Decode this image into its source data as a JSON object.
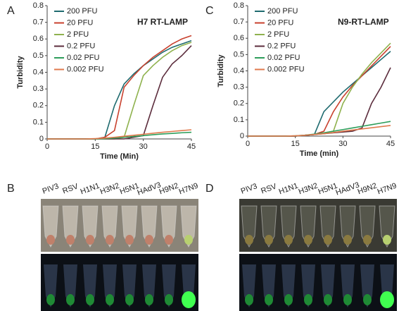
{
  "chart_data": [
    {
      "type": "line",
      "title": "H7 RT-LAMP",
      "xlabel": "Time (Min)",
      "ylabel": "Turbidity",
      "legend": "upper left",
      "xlim": [
        0,
        45
      ],
      "xticks": [
        0,
        15,
        30,
        45
      ],
      "ylim": [
        0,
        0.8
      ],
      "yticks": [
        0,
        0.1,
        0.2,
        0.3,
        0.4,
        0.5,
        0.6,
        0.7,
        0.8
      ],
      "x": [
        0,
        3,
        6,
        9,
        12,
        15,
        18,
        21,
        24,
        27,
        30,
        33,
        36,
        39,
        42,
        45
      ],
      "series": [
        {
          "name": "200 PFU",
          "color": "#1f6b6f",
          "values": [
            0,
            0,
            0,
            0,
            0,
            0,
            0.01,
            0.2,
            0.33,
            0.39,
            0.44,
            0.48,
            0.52,
            0.55,
            0.57,
            0.59
          ]
        },
        {
          "name": "20 PFU",
          "color": "#c8412e",
          "values": [
            0,
            0,
            0,
            0,
            0,
            0,
            0.01,
            0.05,
            0.31,
            0.38,
            0.44,
            0.49,
            0.53,
            0.57,
            0.6,
            0.62
          ]
        },
        {
          "name": "2 PFU",
          "color": "#8fb24e",
          "values": [
            0,
            0,
            0,
            0,
            0,
            0,
            0,
            0,
            0.01,
            0.2,
            0.38,
            0.44,
            0.49,
            0.53,
            0.56,
            0.58
          ]
        },
        {
          "name": "0.2 PFU",
          "color": "#5c2d3d",
          "values": [
            0,
            0,
            0,
            0,
            0,
            0,
            0,
            0,
            0,
            0.01,
            0.02,
            0.2,
            0.37,
            0.45,
            0.5,
            0.56
          ]
        },
        {
          "name": "0.02 PFU",
          "color": "#2e9e5b",
          "values": [
            0,
            0,
            0,
            0,
            0,
            0,
            0.002,
            0.005,
            0.01,
            0.015,
            0.02,
            0.025,
            0.03,
            0.033,
            0.037,
            0.04
          ]
        },
        {
          "name": "0.002 PFU",
          "color": "#e07a4e",
          "values": [
            0,
            0,
            0,
            0,
            0,
            0.002,
            0.005,
            0.01,
            0.016,
            0.022,
            0.028,
            0.034,
            0.04,
            0.045,
            0.05,
            0.055
          ]
        }
      ]
    },
    {
      "type": "line",
      "title": "N9-RT-LAMP",
      "xlabel": "Time (min)",
      "ylabel": "Turbidity",
      "legend": "upper left",
      "xlim": [
        0,
        45
      ],
      "xticks": [
        0,
        15,
        30,
        45
      ],
      "ylim": [
        0,
        0.8
      ],
      "yticks": [
        0,
        0.1,
        0.2,
        0.3,
        0.4,
        0.5,
        0.6,
        0.7,
        0.8
      ],
      "x": [
        0,
        3,
        6,
        9,
        12,
        15,
        18,
        21,
        24,
        27,
        30,
        33,
        36,
        39,
        42,
        45
      ],
      "series": [
        {
          "name": "200 PFU",
          "color": "#1f6b6f",
          "values": [
            0,
            0,
            0,
            0,
            0,
            0,
            0.005,
            0.01,
            0.15,
            0.21,
            0.27,
            0.32,
            0.37,
            0.42,
            0.47,
            0.52
          ]
        },
        {
          "name": "20 PFU",
          "color": "#c8412e",
          "values": [
            0,
            0,
            0,
            0,
            0,
            0,
            0.005,
            0.01,
            0.03,
            0.15,
            0.24,
            0.31,
            0.37,
            0.43,
            0.49,
            0.55
          ]
        },
        {
          "name": "2 PFU",
          "color": "#8fb24e",
          "values": [
            0,
            0,
            0,
            0,
            0,
            0,
            0.005,
            0.01,
            0.02,
            0.03,
            0.2,
            0.3,
            0.38,
            0.45,
            0.51,
            0.57
          ]
        },
        {
          "name": "0.2 PFU",
          "color": "#5c2d3d",
          "values": [
            0,
            0,
            0,
            0,
            0,
            0,
            0.005,
            0.01,
            0.015,
            0.02,
            0.025,
            0.03,
            0.05,
            0.2,
            0.3,
            0.42
          ]
        },
        {
          "name": "0.02 PFU",
          "color": "#2e9e5b",
          "values": [
            0,
            0,
            0,
            0,
            0,
            0.002,
            0.006,
            0.012,
            0.02,
            0.03,
            0.04,
            0.05,
            0.06,
            0.07,
            0.08,
            0.09
          ]
        },
        {
          "name": "0.002 PFU",
          "color": "#e07a4e",
          "values": [
            0,
            0,
            0,
            0,
            0,
            0.002,
            0.005,
            0.01,
            0.015,
            0.022,
            0.03,
            0.037,
            0.044,
            0.051,
            0.058,
            0.065
          ]
        }
      ]
    }
  ],
  "panel_labels": [
    "A",
    "B",
    "C",
    "D"
  ],
  "photos": [
    {
      "labels": [
        "PIV3",
        "RSV",
        "H1N1",
        "H3N2",
        "H5N1",
        "HAdV3",
        "H9N2",
        "H7N9"
      ]
    },
    {
      "labels": [
        "PIV3",
        "RSV",
        "H1N1",
        "H3N2",
        "H5N1",
        "HAdV3",
        "H9N2",
        "H7N9"
      ]
    }
  ]
}
